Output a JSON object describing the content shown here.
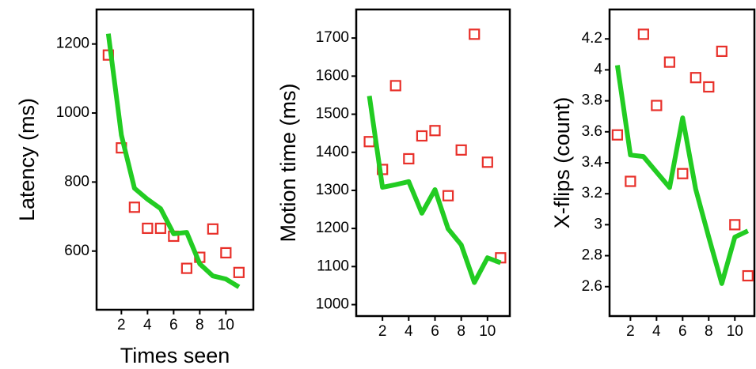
{
  "chart_data": [
    {
      "type": "line",
      "y_label": "Latency (ms)",
      "x_label": "Times seen",
      "x": [
        1,
        2,
        3,
        4,
        5,
        6,
        7,
        8,
        9,
        10,
        11
      ],
      "xlim": [
        0.1,
        12.1
      ],
      "xticks": [
        2,
        4,
        6,
        8,
        10
      ],
      "ylim": [
        430,
        1300
      ],
      "yticks": [
        600,
        800,
        1000,
        1200
      ],
      "series": [
        {
          "style": "markers",
          "color": "#e8302a",
          "values": [
            1168,
            899,
            727,
            666,
            666,
            643,
            550,
            582,
            664,
            595,
            538
          ]
        },
        {
          "style": "line",
          "color": "#22cc22",
          "values": [
            1230,
            936,
            782,
            750,
            723,
            650,
            654,
            563,
            528,
            519,
            496
          ]
        }
      ]
    },
    {
      "type": "line",
      "y_label": "Motion time (ms)",
      "x": [
        1,
        2,
        3,
        4,
        5,
        6,
        7,
        8,
        9,
        10,
        11
      ],
      "xlim": [
        0,
        11.7
      ],
      "xticks": [
        2,
        4,
        6,
        8,
        10
      ],
      "ylim": [
        970,
        1775
      ],
      "yticks": [
        1000,
        1100,
        1200,
        1300,
        1400,
        1500,
        1600,
        1700
      ],
      "series": [
        {
          "style": "markers",
          "color": "#e8302a",
          "values": [
            1428,
            1355,
            1575,
            1383,
            1443,
            1457,
            1286,
            1406,
            1710,
            1374,
            1123
          ]
        },
        {
          "style": "line",
          "color": "#22cc22",
          "values": [
            1548,
            1308,
            1315,
            1323,
            1240,
            1302,
            1199,
            1157,
            1058,
            1123,
            1110
          ]
        }
      ]
    },
    {
      "type": "line",
      "y_label": "X-flips (count)",
      "x": [
        1,
        2,
        3,
        4,
        5,
        6,
        7,
        8,
        9,
        10,
        11
      ],
      "xlim": [
        0.4,
        11.5
      ],
      "xticks": [
        2,
        4,
        6,
        8,
        10
      ],
      "ylim": [
        2.41,
        4.39
      ],
      "yticks": [
        2.6,
        2.8,
        3,
        3.2,
        3.4,
        3.6,
        3.8,
        4,
        4.2
      ],
      "series": [
        {
          "style": "markers",
          "color": "#e8302a",
          "values": [
            3.58,
            3.28,
            4.23,
            3.77,
            4.05,
            3.33,
            3.95,
            3.89,
            4.12,
            3.0,
            2.67
          ]
        },
        {
          "style": "line",
          "color": "#22cc22",
          "values": [
            4.03,
            3.45,
            3.44,
            3.34,
            3.24,
            3.69,
            3.23,
            2.92,
            2.62,
            2.92,
            2.96
          ]
        }
      ]
    }
  ]
}
